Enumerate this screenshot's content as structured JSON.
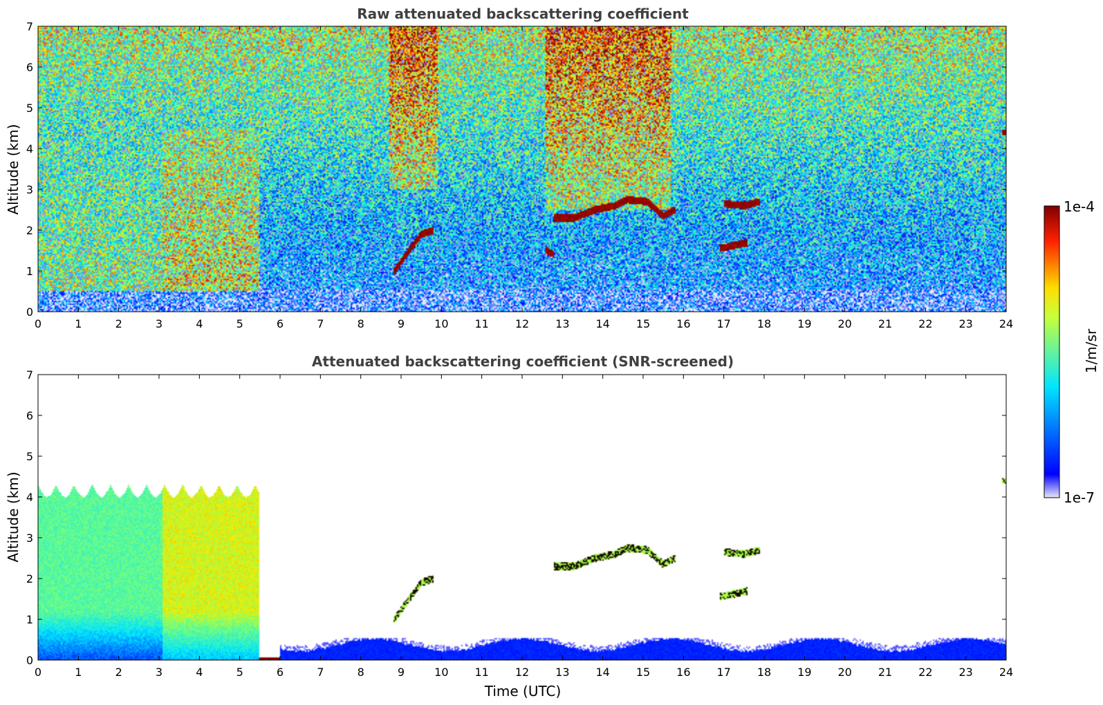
{
  "chart_data": [
    {
      "type": "heatmap",
      "title": "Raw attenuated backscattering coefficient",
      "xlabel": "",
      "ylabel": "Altitude (km)",
      "xlim": [
        0,
        24
      ],
      "ylim": [
        0,
        7
      ],
      "x_ticks": [
        "0",
        "1",
        "2",
        "3",
        "4",
        "5",
        "6",
        "7",
        "8",
        "9",
        "10",
        "11",
        "12",
        "13",
        "14",
        "15",
        "16",
        "17",
        "18",
        "19",
        "20",
        "21",
        "22",
        "23",
        "24"
      ],
      "y_ticks": [
        "0",
        "1",
        "2",
        "3",
        "4",
        "5",
        "6",
        "7"
      ],
      "grid": false,
      "scale": "log",
      "features": [
        {
          "kind": "surface",
          "x_range": [
            0,
            6.1
          ],
          "y_range": [
            0,
            0.08
          ],
          "level": 1.0
        },
        {
          "kind": "boundary_layer",
          "x_range": [
            0,
            24
          ],
          "y_range": [
            0,
            0.55
          ],
          "level": 0.1
        },
        {
          "kind": "aerosol",
          "x_range": [
            0,
            3.1
          ],
          "y_range": [
            0.5,
            4.5
          ],
          "level": 0.55
        },
        {
          "kind": "aerosol",
          "x_range": [
            3.1,
            5.5
          ],
          "y_range": [
            0.5,
            4.5
          ],
          "level": 0.65
        },
        {
          "kind": "background_noise",
          "x_range": [
            8.7,
            9.9
          ],
          "y_range": [
            3,
            7
          ],
          "level": 0.9
        },
        {
          "kind": "background_noise",
          "x_range": [
            12.6,
            15.7
          ],
          "y_range": [
            2.5,
            7
          ],
          "level": 0.9
        },
        {
          "kind": "cloud",
          "points": [
            [
              8.8,
              0.95
            ],
            [
              9.2,
              1.5
            ],
            [
              9.5,
              1.9
            ],
            [
              9.8,
              2.0
            ]
          ]
        },
        {
          "kind": "cloud",
          "points": [
            [
              12.8,
              2.3
            ],
            [
              13.3,
              2.3
            ],
            [
              13.8,
              2.5
            ],
            [
              14.3,
              2.6
            ],
            [
              14.6,
              2.75
            ],
            [
              15.1,
              2.7
            ],
            [
              15.5,
              2.35
            ],
            [
              15.8,
              2.5
            ]
          ]
        },
        {
          "kind": "cloud",
          "points": [
            [
              17.0,
              2.65
            ],
            [
              17.5,
              2.6
            ],
            [
              17.9,
              2.7
            ]
          ]
        },
        {
          "kind": "cloud",
          "points": [
            [
              16.9,
              1.55
            ],
            [
              17.6,
              1.7
            ]
          ]
        },
        {
          "kind": "cloud",
          "points": [
            [
              12.6,
              1.5
            ],
            [
              12.8,
              1.4
            ]
          ]
        },
        {
          "kind": "cloud",
          "points": [
            [
              23.95,
              4.4
            ]
          ]
        }
      ]
    },
    {
      "type": "heatmap",
      "title": "Attenuated backscattering coefficient (SNR-screened)",
      "xlabel": "Time (UTC)",
      "ylabel": "Altitude (km)",
      "xlim": [
        0,
        24
      ],
      "ylim": [
        0,
        7
      ],
      "x_ticks": [
        "0",
        "1",
        "2",
        "3",
        "4",
        "5",
        "6",
        "7",
        "8",
        "9",
        "10",
        "11",
        "12",
        "13",
        "14",
        "15",
        "16",
        "17",
        "18",
        "19",
        "20",
        "21",
        "22",
        "23",
        "24"
      ],
      "y_ticks": [
        "0",
        "1",
        "2",
        "3",
        "4",
        "5",
        "6",
        "7"
      ],
      "grid": false,
      "scale": "log",
      "features": [
        {
          "kind": "surface",
          "x_range": [
            0,
            6.1
          ],
          "y_range": [
            0,
            0.08
          ],
          "level": 1.0
        },
        {
          "kind": "boundary_layer",
          "x_range": [
            6.0,
            24
          ],
          "y_range": [
            0,
            0.55
          ],
          "level": 0.1
        },
        {
          "kind": "aerosol",
          "x_range": [
            0,
            3.1
          ],
          "y_range": [
            0,
            4.3
          ],
          "level": 0.5
        },
        {
          "kind": "aerosol",
          "x_range": [
            3.1,
            5.5
          ],
          "y_range": [
            0,
            4.3
          ],
          "level": 0.65
        },
        {
          "kind": "cloud",
          "points": [
            [
              8.8,
              0.95
            ],
            [
              9.2,
              1.5
            ],
            [
              9.5,
              1.9
            ],
            [
              9.8,
              2.0
            ]
          ]
        },
        {
          "kind": "cloud",
          "points": [
            [
              12.8,
              2.3
            ],
            [
              13.3,
              2.3
            ],
            [
              13.8,
              2.5
            ],
            [
              14.3,
              2.6
            ],
            [
              14.6,
              2.75
            ],
            [
              15.1,
              2.7
            ],
            [
              15.5,
              2.35
            ],
            [
              15.8,
              2.5
            ]
          ]
        },
        {
          "kind": "cloud",
          "points": [
            [
              17.0,
              2.65
            ],
            [
              17.5,
              2.6
            ],
            [
              17.9,
              2.7
            ]
          ]
        },
        {
          "kind": "cloud",
          "points": [
            [
              16.9,
              1.55
            ],
            [
              17.6,
              1.7
            ]
          ]
        },
        {
          "kind": "cloud",
          "points": [
            [
              23.95,
              4.4
            ]
          ]
        }
      ]
    }
  ],
  "colorbar": {
    "min_label": "1e-7",
    "max_label": "1e-4",
    "label": "1/m/sr",
    "colormap": "jet",
    "colors": [
      "#e8e8f8",
      "#0000ff",
      "#00ffff",
      "#ffff00",
      "#ff0000",
      "#800000"
    ]
  }
}
